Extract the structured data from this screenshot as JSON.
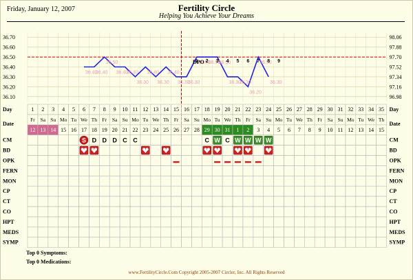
{
  "header": {
    "date": "Friday, January 12, 2007",
    "title": "Fertility Circle",
    "subtitle": "Helping You Achieve Your Dreams"
  },
  "colors": {
    "line": "#2222dd",
    "temp_label": "#e8a0b0",
    "coverline": "#cc0000",
    "date_pink": "#d06a90",
    "date_green": "#2e8b22",
    "grid": "#bdbdbd"
  },
  "chart_data": {
    "type": "line",
    "series_name": "Temperature",
    "days": [
      1,
      2,
      3,
      4,
      5,
      6,
      7,
      8,
      9,
      10,
      11,
      12,
      13,
      14,
      15,
      16,
      17,
      18,
      19,
      20,
      21,
      22,
      23,
      24,
      25,
      26,
      27,
      28,
      29,
      30,
      31,
      32,
      33,
      34,
      35
    ],
    "weekdays": [
      "Fr",
      "Sa",
      "Su",
      "Mo",
      "Tu",
      "We",
      "Th",
      "Fr",
      "Sa",
      "Su",
      "Mo",
      "Tu",
      "We",
      "Th",
      "Fr",
      "Sa",
      "Su",
      "Mo",
      "Tu",
      "We",
      "Th",
      "Fr",
      "Sa",
      "Su",
      "Mo",
      "Tu",
      "We",
      "Th",
      "Fr",
      "Sa",
      "Su",
      "Mo",
      "Tu",
      "We",
      "Th"
    ],
    "dates": [
      "12",
      "13",
      "14",
      "15",
      "16",
      "17",
      "18",
      "19",
      "20",
      "21",
      "22",
      "23",
      "24",
      "25",
      "26",
      "27",
      "28",
      "29",
      "30",
      "31",
      "1",
      "2",
      "3",
      "4",
      "5",
      "6",
      "7",
      "8",
      "9",
      "10",
      "11",
      "12",
      "13",
      "14",
      "15"
    ],
    "date_highlight": {
      "pink": [
        1,
        2,
        3
      ],
      "green": [
        18,
        19,
        20,
        21,
        22
      ]
    },
    "temps": [
      {
        "day": 6,
        "value": 36.4,
        "label": "36.40"
      },
      {
        "day": 7,
        "value": 36.4,
        "label": "36.40"
      },
      {
        "day": 8,
        "value": 36.5,
        "label": "36.50"
      },
      {
        "day": 9,
        "value": 36.4,
        "label": "36.40"
      },
      {
        "day": 10,
        "value": 36.4,
        "label": "36.40"
      },
      {
        "day": 11,
        "value": 36.3,
        "label": "36.30"
      },
      {
        "day": 12,
        "value": 36.4,
        "label": "36.40"
      },
      {
        "day": 13,
        "value": 36.3,
        "label": "36.30"
      },
      {
        "day": 14,
        "value": 36.4,
        "label": "36.40"
      },
      {
        "day": 15,
        "value": 36.3,
        "label": "36.30"
      },
      {
        "day": 16,
        "value": 36.3,
        "label": "36.30"
      },
      {
        "day": 17,
        "value": 36.5,
        "label": "36.50"
      },
      {
        "day": 18,
        "value": 36.5,
        "label": "36.50"
      },
      {
        "day": 19,
        "value": 36.5,
        "label": "36.50"
      },
      {
        "day": 20,
        "value": 36.3,
        "label": "36.30"
      },
      {
        "day": 21,
        "value": 36.3,
        "label": "36.30"
      },
      {
        "day": 22,
        "value": 36.2,
        "label": "36.20"
      },
      {
        "day": 23,
        "value": 36.5,
        "label": "36.50"
      },
      {
        "day": 24,
        "value": 36.3,
        "label": "36.30"
      }
    ],
    "dpo_numbers": [
      {
        "day": 17,
        "label": "1"
      },
      {
        "day": 18,
        "label": "2"
      },
      {
        "day": 19,
        "label": "3"
      },
      {
        "day": 20,
        "label": "4"
      },
      {
        "day": 21,
        "label": "5"
      },
      {
        "day": 22,
        "label": "6"
      },
      {
        "day": 23,
        "label": "7"
      },
      {
        "day": 24,
        "label": "8"
      },
      {
        "day": 25,
        "label": "9"
      }
    ],
    "dpo_label": "DPO",
    "ovulation_day": 16,
    "coverline_value": 36.5,
    "ylim": [
      36.05,
      36.75
    ],
    "y_ticks_c": [
      "36.70",
      "36.60",
      "36.50",
      "36.40",
      "36.30",
      "36.20",
      "36.10"
    ],
    "y_ticks_f": [
      "98.06",
      "97.88",
      "97.70",
      "97.52",
      "97.34",
      "97.16",
      "96.98"
    ],
    "grid": true
  },
  "rows": {
    "day_label": "Day",
    "date_label": "Date",
    "labels": [
      "CM",
      "BD",
      "OPK",
      "FERN",
      "MON",
      "CP",
      "CT",
      "CO",
      "HPT",
      "MEDS",
      "SYMP"
    ]
  },
  "cm_marks": [
    {
      "day": 6,
      "text": "S",
      "style": "red-circle"
    },
    {
      "day": 7,
      "text": "D",
      "style": "plain"
    },
    {
      "day": 8,
      "text": "D",
      "style": "plain"
    },
    {
      "day": 9,
      "text": "D",
      "style": "plain"
    },
    {
      "day": 10,
      "text": "C",
      "style": "plain"
    },
    {
      "day": 11,
      "text": "C",
      "style": "plain"
    },
    {
      "day": 18,
      "text": "C",
      "style": "plain"
    },
    {
      "day": 19,
      "text": "W",
      "style": "green-box"
    },
    {
      "day": 20,
      "text": "C",
      "style": "plain"
    },
    {
      "day": 21,
      "text": "W",
      "style": "green-box"
    },
    {
      "day": 22,
      "text": "W",
      "style": "green-box"
    },
    {
      "day": 23,
      "text": "W",
      "style": "green-box"
    },
    {
      "day": 24,
      "text": "W",
      "style": "green-box"
    }
  ],
  "bd_days": [
    6,
    7,
    12,
    14,
    18,
    19,
    21,
    22,
    24
  ],
  "opk_days": [
    15,
    19,
    20,
    21,
    22,
    23
  ],
  "footer": {
    "symptoms": "Top 0 Symptoms:",
    "medications": "Top 0 Medications:",
    "copyright": "www.FertilityCircle.Com Copyright 2005-2007 Circler, Inc. All Rights Reserved"
  }
}
